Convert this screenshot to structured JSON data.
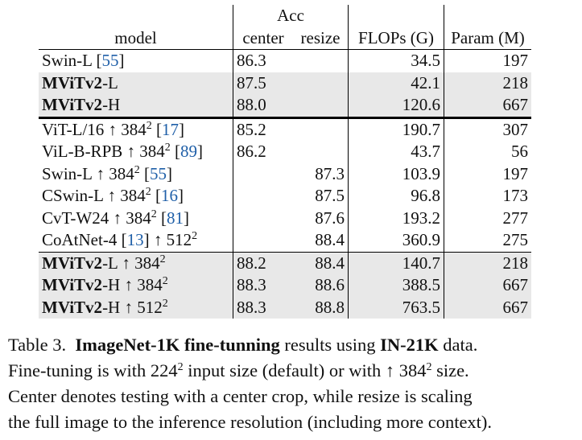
{
  "table": {
    "header": {
      "acc_group": "Acc",
      "model": "model",
      "center": "center",
      "resize": "resize",
      "flops": "FLOPs (G)",
      "params": "Param (M)"
    },
    "rows": [
      {
        "name_bold": "",
        "name": "Swin-L [",
        "cite": "55",
        "name_after": "]",
        "res": "",
        "center": "86.3",
        "resize": "",
        "flops": "34.5",
        "params": "197",
        "gray": false,
        "bold_center": false,
        "bold_resize": false
      },
      {
        "name_bold": "MViTv2",
        "name": "-L",
        "cite": "",
        "name_after": "",
        "res": "",
        "center": "87.5",
        "resize": "",
        "flops": "42.1",
        "params": "218",
        "gray": true,
        "bold_center": false,
        "bold_resize": false
      },
      {
        "name_bold": "MViTv2",
        "name": "-H",
        "cite": "",
        "name_after": "",
        "res": "",
        "center": "88.0",
        "resize": "",
        "flops": "120.6",
        "params": "667",
        "gray": true,
        "bold_center": true,
        "bold_resize": false
      },
      {
        "name_bold": "",
        "name": "ViT-L/16 ↑ 384",
        "cite": "17",
        "name_after": "",
        "res": "2",
        "center": "85.2",
        "resize": "",
        "flops": "190.7",
        "params": "307",
        "gray": false
      },
      {
        "name_bold": "",
        "name": "ViL-B-RPB ↑ 384",
        "cite": "89",
        "name_after": "",
        "res": "2",
        "center": "86.2",
        "resize": "",
        "flops": "43.7",
        "params": "56",
        "gray": false
      },
      {
        "name_bold": "",
        "name": "Swin-L ↑ 384",
        "cite": "55",
        "name_after": "",
        "res": "2",
        "center": "",
        "resize": "87.3",
        "flops": "103.9",
        "params": "197",
        "gray": false
      },
      {
        "name_bold": "",
        "name": "CSwin-L ↑ 384",
        "cite": "16",
        "name_after": "",
        "res": "2",
        "center": "",
        "resize": "87.5",
        "flops": "96.8",
        "params": "173",
        "gray": false
      },
      {
        "name_bold": "",
        "name": "CvT-W24 ↑ 384",
        "cite": "81",
        "name_after": "",
        "res": "2",
        "center": "",
        "resize": "87.6",
        "flops": "193.2",
        "params": "277",
        "gray": false
      },
      {
        "name_bold": "",
        "name": "CoAtNet-4 [",
        "cite": "13",
        "name_after": "] ↑ 512",
        "res": "2",
        "center": "",
        "resize": "88.4",
        "flops": "360.9",
        "params": "275",
        "gray": false
      },
      {
        "name_bold": "MViTv2",
        "name": "-L ↑ 384",
        "cite": "",
        "name_after": "",
        "res": "2",
        "center": "88.2",
        "resize": "88.4",
        "flops": "140.7",
        "params": "218",
        "gray": true
      },
      {
        "name_bold": "MViTv2",
        "name": "-H ↑ 384",
        "cite": "",
        "name_after": "",
        "res": "2",
        "center": "88.3",
        "resize": "88.6",
        "flops": "388.5",
        "params": "667",
        "gray": true
      },
      {
        "name_bold": "MViTv2",
        "name": "-H ↑ 512",
        "cite": "",
        "name_after": "",
        "res": "2",
        "center": "88.3",
        "resize": "88.8",
        "flops": "763.5",
        "params": "667",
        "gray": true,
        "bold_resize": true
      }
    ]
  },
  "caption": {
    "label": "Table 3.",
    "bold1": "ImageNet-1K fine-tunning",
    "t1": " results using ",
    "bold2": "IN-21K",
    "t2": " data.",
    "l2a": "Fine-tuning is with 224",
    "l2sup": "2",
    "l2b": " input size (default) or with ↑ 384",
    "l2sup2": "2",
    "l2c": " size.",
    "l3": "Center denotes testing with a center crop, while resize is scaling",
    "l4": "the full image to the inference resolution (including more context)."
  }
}
